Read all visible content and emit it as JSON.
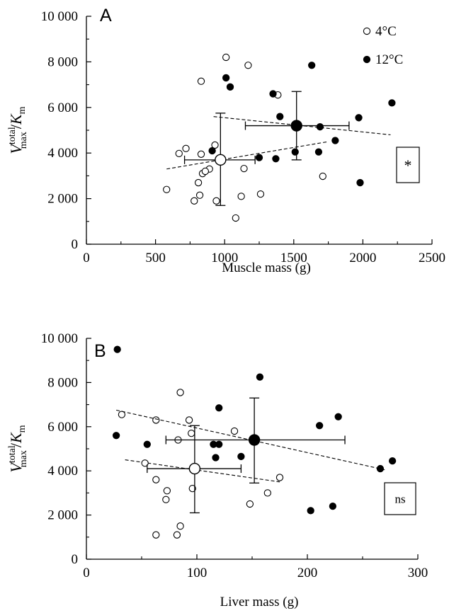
{
  "chart_data": [
    {
      "type": "scatter",
      "panel_label": "A",
      "xlabel": "Muscle mass (g)",
      "ylabel": {
        "main": "V",
        "sup": "total",
        "sub": "max",
        "slash": "/K",
        "sub2": "m"
      },
      "xlim": [
        0,
        2500
      ],
      "ylim": [
        0,
        10000
      ],
      "xticks": [
        0,
        500,
        1000,
        1500,
        2000,
        2500
      ],
      "xtick_labels": [
        "0",
        "500",
        "1000",
        "1500",
        "2000",
        "2500"
      ],
      "yticks": [
        0,
        2000,
        4000,
        6000,
        8000,
        10000
      ],
      "ytick_labels": [
        "0",
        "2 000",
        "4 000",
        "6 000",
        "8 000",
        "10 000"
      ],
      "legend": [
        "4°C",
        "12°C"
      ],
      "legend_position": "top-right",
      "significance": "*",
      "series": [
        {
          "name": "4°C",
          "marker": "open-circle",
          "points": [
            [
              1010,
              8200
            ],
            [
              1170,
              7850
            ],
            [
              830,
              7150
            ],
            [
              1385,
              6550
            ],
            [
              720,
              4200
            ],
            [
              670,
              3980
            ],
            [
              930,
              4350
            ],
            [
              830,
              3950
            ],
            [
              890,
              3300
            ],
            [
              840,
              3100
            ],
            [
              860,
              3200
            ],
            [
              810,
              2700
            ],
            [
              1140,
              3320
            ],
            [
              1710,
              2980
            ],
            [
              580,
              2400
            ],
            [
              820,
              2150
            ],
            [
              1120,
              2100
            ],
            [
              1260,
              2200
            ],
            [
              780,
              1900
            ],
            [
              940,
              1900
            ],
            [
              1080,
              1150
            ]
          ],
          "mean": [
            970,
            3700
          ],
          "x_err": [
            710,
            1220
          ],
          "y_err": [
            1700,
            5750
          ],
          "trend": [
            [
              580,
              3300
            ],
            [
              1750,
              4500
            ]
          ]
        },
        {
          "name": "12°C",
          "marker": "filled-circle",
          "points": [
            [
              1630,
              7850
            ],
            [
              1010,
              7300
            ],
            [
              1040,
              6900
            ],
            [
              1350,
              6600
            ],
            [
              2210,
              6200
            ],
            [
              1400,
              5600
            ],
            [
              1970,
              5550
            ],
            [
              1690,
              5150
            ],
            [
              1800,
              4550
            ],
            [
              1510,
              4050
            ],
            [
              1680,
              4050
            ],
            [
              910,
              4100
            ],
            [
              1250,
              3800
            ],
            [
              1370,
              3750
            ],
            [
              1980,
              2700
            ]
          ],
          "mean": [
            1520,
            5200
          ],
          "x_err": [
            1150,
            1900
          ],
          "y_err": [
            3700,
            6700
          ],
          "trend": [
            [
              920,
              5600
            ],
            [
              2200,
              4800
            ]
          ]
        }
      ]
    },
    {
      "type": "scatter",
      "panel_label": "B",
      "xlabel": "Liver mass (g)",
      "ylabel": {
        "main": "V",
        "sup": "total",
        "sub": "max",
        "slash": "/K",
        "sub2": "m"
      },
      "xlim": [
        0,
        300
      ],
      "ylim": [
        0,
        10000
      ],
      "xticks": [
        0,
        100,
        200,
        300
      ],
      "xtick_labels": [
        "0",
        "100",
        "200",
        "300"
      ],
      "yticks": [
        0,
        2000,
        4000,
        6000,
        8000,
        10000
      ],
      "ytick_labels": [
        "0",
        "2 000",
        "4 000",
        "6 000",
        "8 000",
        "10 000"
      ],
      "significance": "ns",
      "series": [
        {
          "name": "4°C",
          "marker": "open-circle",
          "points": [
            [
              85,
              7550
            ],
            [
              32,
              6550
            ],
            [
              63,
              6300
            ],
            [
              93,
              6300
            ],
            [
              95,
              5700
            ],
            [
              134,
              5800
            ],
            [
              83,
              5400
            ],
            [
              53,
              4350
            ],
            [
              63,
              3600
            ],
            [
              175,
              3700
            ],
            [
              73,
              3100
            ],
            [
              164,
              3000
            ],
            [
              72,
              2700
            ],
            [
              148,
              2500
            ],
            [
              96,
              3200
            ],
            [
              85,
              1500
            ],
            [
              63,
              1100
            ],
            [
              82,
              1100
            ]
          ],
          "mean": [
            98,
            4100
          ],
          "x_err": [
            55,
            140
          ],
          "y_err": [
            2100,
            6050
          ],
          "trend": [
            [
              35,
              4500
            ],
            [
              175,
              3500
            ]
          ]
        },
        {
          "name": "12°C",
          "marker": "filled-circle",
          "points": [
            [
              28,
              9500
            ],
            [
              157,
              8250
            ],
            [
              120,
              6850
            ],
            [
              228,
              6450
            ],
            [
              211,
              6050
            ],
            [
              27,
              5600
            ],
            [
              115,
              5200
            ],
            [
              120,
              5200
            ],
            [
              55,
              5200
            ],
            [
              140,
              4650
            ],
            [
              117,
              4600
            ],
            [
              266,
              4100
            ],
            [
              277,
              4450
            ],
            [
              203,
              2200
            ],
            [
              223,
              2400
            ]
          ],
          "mean": [
            152,
            5400
          ],
          "x_err": [
            72,
            234
          ],
          "y_err": [
            3450,
            7300
          ],
          "trend": [
            [
              27,
              6750
            ],
            [
              270,
              4050
            ]
          ]
        }
      ]
    }
  ]
}
